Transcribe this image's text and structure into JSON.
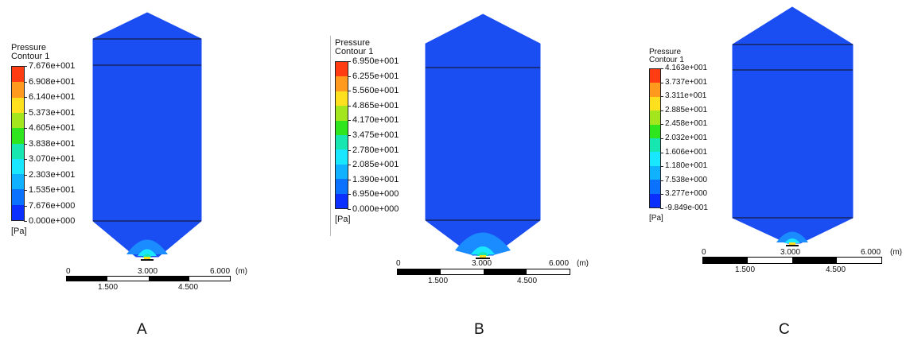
{
  "colors": {
    "body": "#1a4df2",
    "levels": [
      "#0b2fff",
      "#0b72ff",
      "#10b2ff",
      "#19e6ff",
      "#17e6b0",
      "#1ee67a",
      "#2fe61e",
      "#a4e61e",
      "#ffe01e",
      "#ff9a1e",
      "#ff3c12"
    ]
  },
  "panels": [
    {
      "label": "A",
      "legend": {
        "title1": "Pressure",
        "title2": "Contour 1",
        "values": [
          "7.676e+001",
          "6.908e+001",
          "6.140e+001",
          "5.373e+001",
          "4.605e+001",
          "3.838e+001",
          "3.070e+001",
          "2.303e+001",
          "1.535e+001",
          "7.676e+000",
          "0.000e+000"
        ],
        "unit": "[Pa]"
      },
      "scale": {
        "labels_top": [
          "0",
          "3.000",
          "6.000"
        ],
        "unit": "(m)",
        "labels_bottom": [
          "1.500",
          "4.500"
        ]
      }
    },
    {
      "label": "B",
      "legend": {
        "title1": "Pressure",
        "title2": "Contour 1",
        "values": [
          "6.950e+001",
          "6.255e+001",
          "5.560e+001",
          "4.865e+001",
          "4.170e+001",
          "3.475e+001",
          "2.780e+001",
          "2.085e+001",
          "1.390e+001",
          "6.950e+000",
          "0.000e+000"
        ],
        "unit": "[Pa]"
      },
      "scale": {
        "labels_top": [
          "0",
          "3.000",
          "6.000"
        ],
        "unit": "(m)",
        "labels_bottom": [
          "1.500",
          "4.500"
        ]
      }
    },
    {
      "label": "C",
      "legend": {
        "title1": "Pressure",
        "title2": "Contour 1",
        "values": [
          "4.163e+001",
          "3.737e+001",
          "3.311e+001",
          "2.885e+001",
          "2.458e+001",
          "2.032e+001",
          "1.606e+001",
          "1.180e+001",
          "7.538e+000",
          "3.277e+000",
          "-9.849e-001"
        ],
        "unit": "[Pa]"
      },
      "scale": {
        "labels_top": [
          "0",
          "3.000",
          "6.000"
        ],
        "unit": "(m)",
        "labels_bottom": [
          "1.500",
          "4.500"
        ]
      }
    }
  ]
}
